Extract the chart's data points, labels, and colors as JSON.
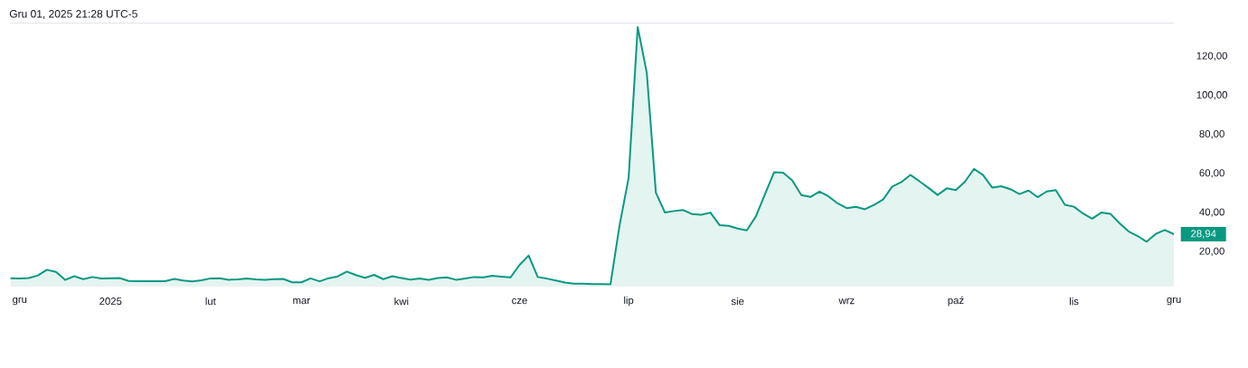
{
  "chart_data": {
    "type": "area",
    "title": "Gru 01, 2025 21:28 UTC-5",
    "categories": [
      null,
      "gru",
      null,
      null,
      null,
      null,
      null,
      null,
      null,
      null,
      null,
      "2025",
      null,
      null,
      null,
      null,
      null,
      null,
      null,
      null,
      null,
      null,
      "lut",
      null,
      null,
      null,
      null,
      null,
      null,
      null,
      null,
      null,
      "mar",
      null,
      null,
      null,
      null,
      null,
      null,
      null,
      null,
      null,
      null,
      "kwi",
      null,
      null,
      null,
      null,
      null,
      null,
      null,
      null,
      null,
      null,
      null,
      null,
      "cze",
      null,
      null,
      null,
      null,
      null,
      null,
      null,
      null,
      null,
      null,
      null,
      "lip",
      null,
      null,
      null,
      null,
      null,
      null,
      null,
      null,
      null,
      null,
      null,
      "sie",
      null,
      null,
      null,
      null,
      null,
      null,
      null,
      null,
      null,
      null,
      null,
      "wrz",
      null,
      null,
      null,
      null,
      null,
      null,
      null,
      null,
      null,
      null,
      null,
      "paź",
      null,
      null,
      null,
      null,
      null,
      null,
      null,
      null,
      null,
      null,
      null,
      null,
      "lis",
      null,
      null,
      null,
      null,
      null,
      null,
      null,
      null,
      null,
      null,
      "gru"
    ],
    "values": [
      6.4,
      6.2,
      6.5,
      7.8,
      10.7,
      9.6,
      5.5,
      7.4,
      5.9,
      7.0,
      6.2,
      6.4,
      6.5,
      5.0,
      4.9,
      4.9,
      4.9,
      4.9,
      6.0,
      5.2,
      4.8,
      5.3,
      6.3,
      6.4,
      5.6,
      5.8,
      6.2,
      5.8,
      5.6,
      5.9,
      6.0,
      4.3,
      4.3,
      6.3,
      4.8,
      6.4,
      7.3,
      9.8,
      8.0,
      6.6,
      8.1,
      5.9,
      7.4,
      6.5,
      5.7,
      6.2,
      5.6,
      6.5,
      6.8,
      5.6,
      6.2,
      7.0,
      6.8,
      7.6,
      7.2,
      6.8,
      13.2,
      18.0,
      7.0,
      6.2,
      5.2,
      4.2,
      3.6,
      3.6,
      3.4,
      3.3,
      3.2,
      33.4,
      57.8,
      135,
      111.5,
      50.2,
      40.0,
      40.8,
      41.3,
      39.2,
      38.9,
      40.0,
      33.6,
      33.2,
      31.8,
      30.9,
      38.0,
      49.4,
      60.6,
      60.4,
      56.5,
      49.0,
      48.0,
      50.8,
      48.3,
      44.7,
      42.3,
      42.9,
      41.7,
      43.9,
      46.7,
      53.3,
      55.6,
      59.3,
      56.0,
      52.6,
      49.0,
      52.4,
      51.5,
      55.8,
      62.4,
      59.2,
      52.8,
      53.5,
      52.0,
      49.5,
      51.3,
      47.9,
      50.8,
      51.5,
      44.0,
      43.0,
      39.5,
      36.9,
      40.0,
      39.4,
      34.6,
      30.4,
      28.0,
      25.1,
      29.1,
      31.1,
      28.94
    ],
    "color": "#089981",
    "ylim": [
      2.5,
      137
    ],
    "yticks": [
      {
        "value": 20,
        "label": "20,00"
      },
      {
        "value": 40,
        "label": "40,00"
      },
      {
        "value": 60,
        "label": "60,00"
      },
      {
        "value": 80,
        "label": "80,00"
      },
      {
        "value": 100,
        "label": "100,00"
      },
      {
        "value": 120,
        "label": "120,00"
      }
    ],
    "annotations": [
      "28,94"
    ]
  }
}
